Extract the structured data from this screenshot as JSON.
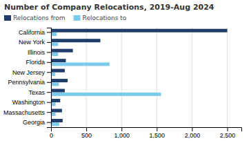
{
  "chart_data": {
    "type": "bar",
    "orientation": "horizontal",
    "title": "Number of Company Relocations, 2019-Aug 2024",
    "categories": [
      "California",
      "New York",
      "Illinois",
      "Florida",
      "New Jersey",
      "Pennsylvania",
      "Texas",
      "Washington",
      "Massachusetts",
      "Georgia"
    ],
    "series": [
      {
        "name": "Relocations from",
        "color": "#1f3d6b",
        "values": [
          2500,
          700,
          310,
          210,
          195,
          235,
          195,
          130,
          155,
          165
        ]
      },
      {
        "name": "Relocations to",
        "color": "#7dcbea",
        "values": [
          80,
          100,
          100,
          830,
          60,
          110,
          1560,
          65,
          65,
          115
        ]
      }
    ],
    "xlim": [
      0,
      2700
    ],
    "xticks": [
      0,
      500,
      {
        "value": 1000,
        "label": "1,000"
      },
      {
        "value": 1500,
        "label": "1,500"
      },
      {
        "value": 2000,
        "label": "2,000"
      },
      {
        "value": 2500,
        "label": "2,500"
      }
    ],
    "grid": true,
    "legend": "upper left"
  }
}
